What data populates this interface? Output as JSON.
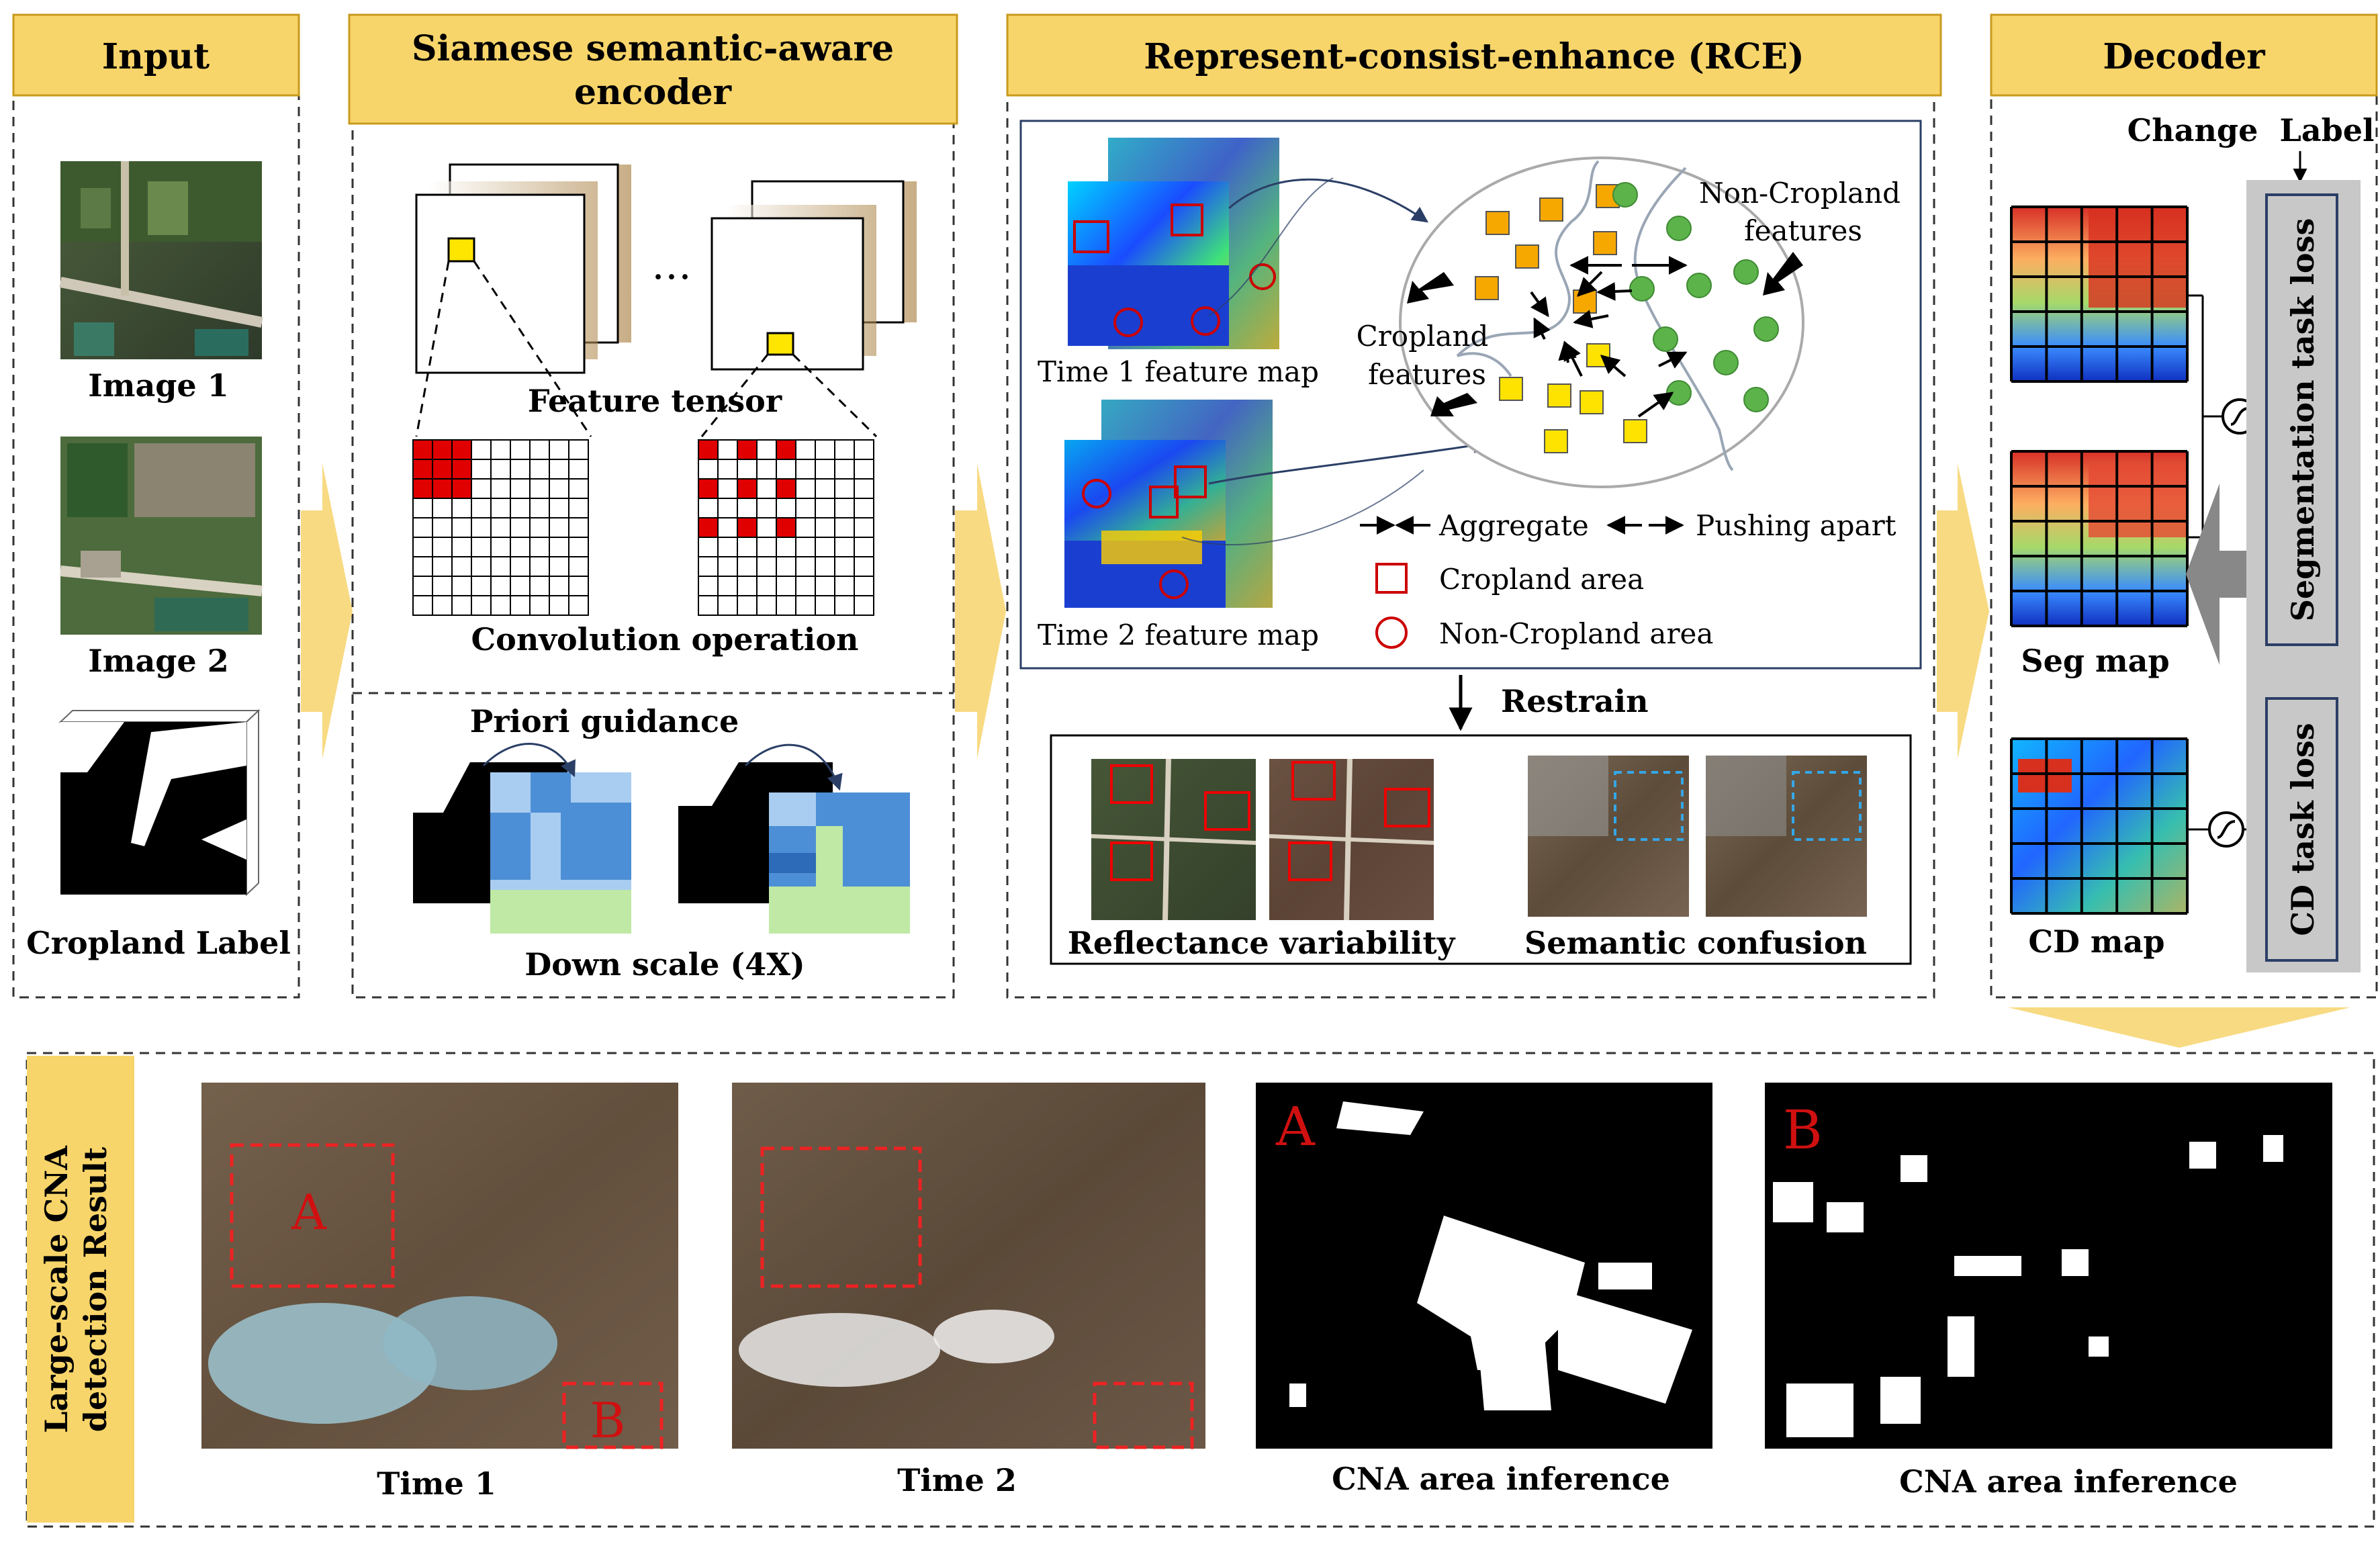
{
  "colors": {
    "header_fill": "#f8d56a",
    "header_stroke": "#c99a1d",
    "arrow_fill": "#f7d46c",
    "dark_red": "#cc0000",
    "gray_loss": "#c8c8c8"
  },
  "headers": {
    "input": "Input",
    "encoder_line1": "Siamese semantic-aware",
    "encoder_line2": "encoder",
    "rce": "Represent-consist-enhance (RCE)",
    "decoder": "Decoder"
  },
  "input": {
    "image1": "Image 1",
    "image2": "Image 2",
    "label": "Cropland Label"
  },
  "encoder": {
    "ellipsis": "…",
    "feature_tensor": "Feature tensor",
    "convolution": "Convolution operation",
    "priori": "Priori guidance",
    "downscale": "Down scale (4X)"
  },
  "rce": {
    "time1_map": "Time 1  feature map",
    "time2_map": "Time 2  feature map",
    "noncropland_l1": "Non-Cropland",
    "noncropland_l2": "features",
    "cropland_l1": "Cropland",
    "cropland_l2": "features",
    "legend_aggregate": "Aggregate",
    "legend_push": "Pushing apart",
    "legend_cropland": "Cropland area",
    "legend_noncropland": "Non-Cropland area",
    "restrain": "Restrain",
    "reflectance": "Reflectance variability",
    "semantic": "Semantic confusion"
  },
  "decoder": {
    "change": "Change",
    "label": "Label",
    "seg_map_top": "Seg map",
    "seg_map": "Seg map",
    "cd_map": "CD map",
    "seg_loss": "Segmentation task loss",
    "cd_loss": "CD task loss"
  },
  "result": {
    "side_line1": "Large-scale CNA",
    "side_line2": "detection Result",
    "time1": "Time 1",
    "time2": "Time 2",
    "inference_a": "CNA area inference",
    "inference_b": "CNA area inference",
    "region_a": "A",
    "region_b": "B"
  }
}
